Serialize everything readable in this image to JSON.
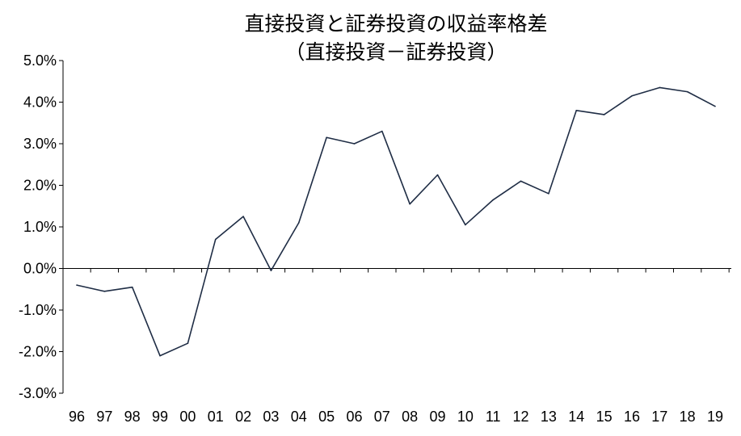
{
  "chart_data": {
    "type": "line",
    "title": "直接投資と証券投資の収益率格差",
    "subtitle": "（直接投資－証券投資）",
    "xlabel": "",
    "ylabel": "",
    "categories": [
      "96",
      "97",
      "98",
      "99",
      "00",
      "01",
      "02",
      "03",
      "04",
      "05",
      "06",
      "07",
      "08",
      "09",
      "10",
      "11",
      "12",
      "13",
      "14",
      "15",
      "16",
      "17",
      "18",
      "19"
    ],
    "series": [
      {
        "values": [
          -0.4,
          -0.55,
          -0.45,
          -2.1,
          -1.8,
          0.7,
          1.25,
          -0.05,
          1.1,
          3.15,
          3.0,
          3.3,
          1.55,
          2.25,
          1.05,
          1.65,
          2.1,
          1.8,
          3.8,
          3.7,
          4.15,
          4.35,
          4.25,
          3.9
        ]
      }
    ],
    "yticks": [
      "5.0%",
      "4.0%",
      "3.0%",
      "2.0%",
      "1.0%",
      "0.0%",
      "-1.0%",
      "-2.0%",
      "-3.0%"
    ],
    "ylim": [
      -3.0,
      5.0
    ],
    "grid": false,
    "legend": "none",
    "line_color": "#1f2d45"
  }
}
